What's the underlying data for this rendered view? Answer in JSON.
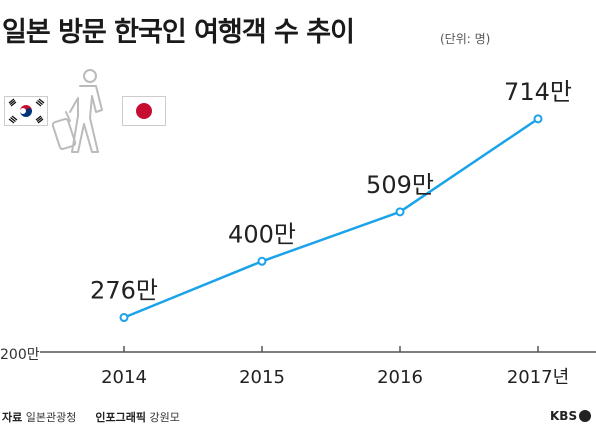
{
  "header": {
    "title": "일본 방문 한국인 여행객 수 추이",
    "unit": "(단위: 명)"
  },
  "footer": {
    "source_label": "자료",
    "source_value": "일본관광청",
    "graphic_label": "인포그래픽",
    "graphic_value": "강원모",
    "logo_text": "KBS"
  },
  "icons": [
    "korea-flag-icon",
    "traveler-with-luggage-icon",
    "japan-flag-icon"
  ],
  "colors": {
    "line": "#1aa3e8",
    "axis": "#555555",
    "flag_red": "#c60c30",
    "flag_blue": "#003478"
  },
  "chart_data": {
    "type": "line",
    "title": "일본 방문 한국인 여행객 수 추이",
    "unit": "(단위: 명)",
    "x": [
      "2014",
      "2015",
      "2016",
      "2017년"
    ],
    "y_baseline_label": "200만",
    "ylim": [
      200,
      760
    ],
    "series": [
      {
        "values": [
          276,
          400,
          509,
          714
        ],
        "labels": [
          "276만",
          "400만",
          "509만",
          "714만"
        ]
      }
    ],
    "grid": false
  }
}
